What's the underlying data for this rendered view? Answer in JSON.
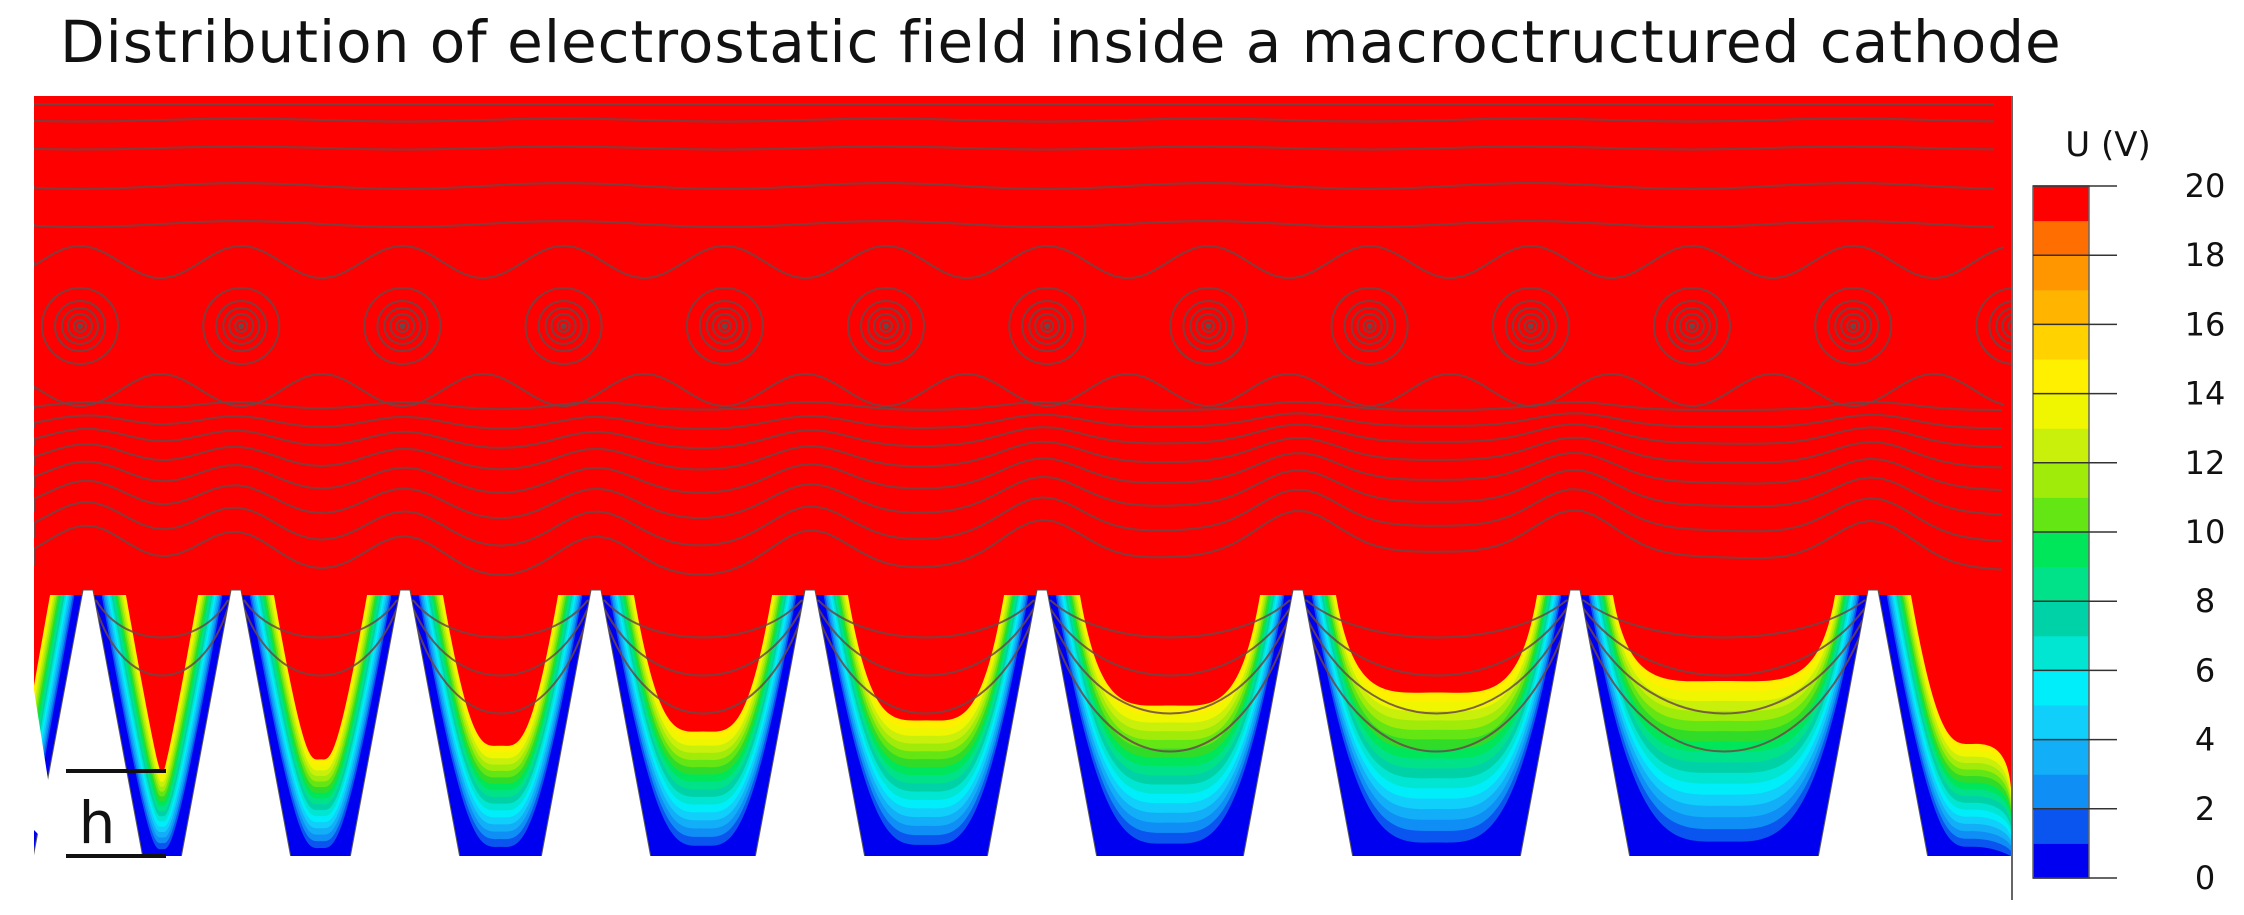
{
  "chart_data": {
    "type": "heatmap",
    "title": "Distribution of electrostatic field inside a macroctructured cathode",
    "colorbar": {
      "label": "U (V)",
      "range": [
        0,
        20
      ],
      "ticks": [
        0,
        2,
        4,
        6,
        8,
        10,
        12,
        14,
        16,
        18,
        20
      ],
      "levels": 20,
      "colors": [
        "#0000f0",
        "#0a55f0",
        "#0f8ff5",
        "#12aff8",
        "#10cffa",
        "#00eefa",
        "#00e6d2",
        "#00d2a8",
        "#00e28a",
        "#00e65a",
        "#30dc28",
        "#64e614",
        "#a0eb0a",
        "#c8f00a",
        "#f0f500",
        "#fff000",
        "#ffd200",
        "#ffb400",
        "#ff9600",
        "#ff6e00",
        "#ff0000"
      ]
    },
    "scale_marker": "h",
    "cathode_tips": 9,
    "field_line_centers": 13,
    "grid": false,
    "legend": "right"
  }
}
